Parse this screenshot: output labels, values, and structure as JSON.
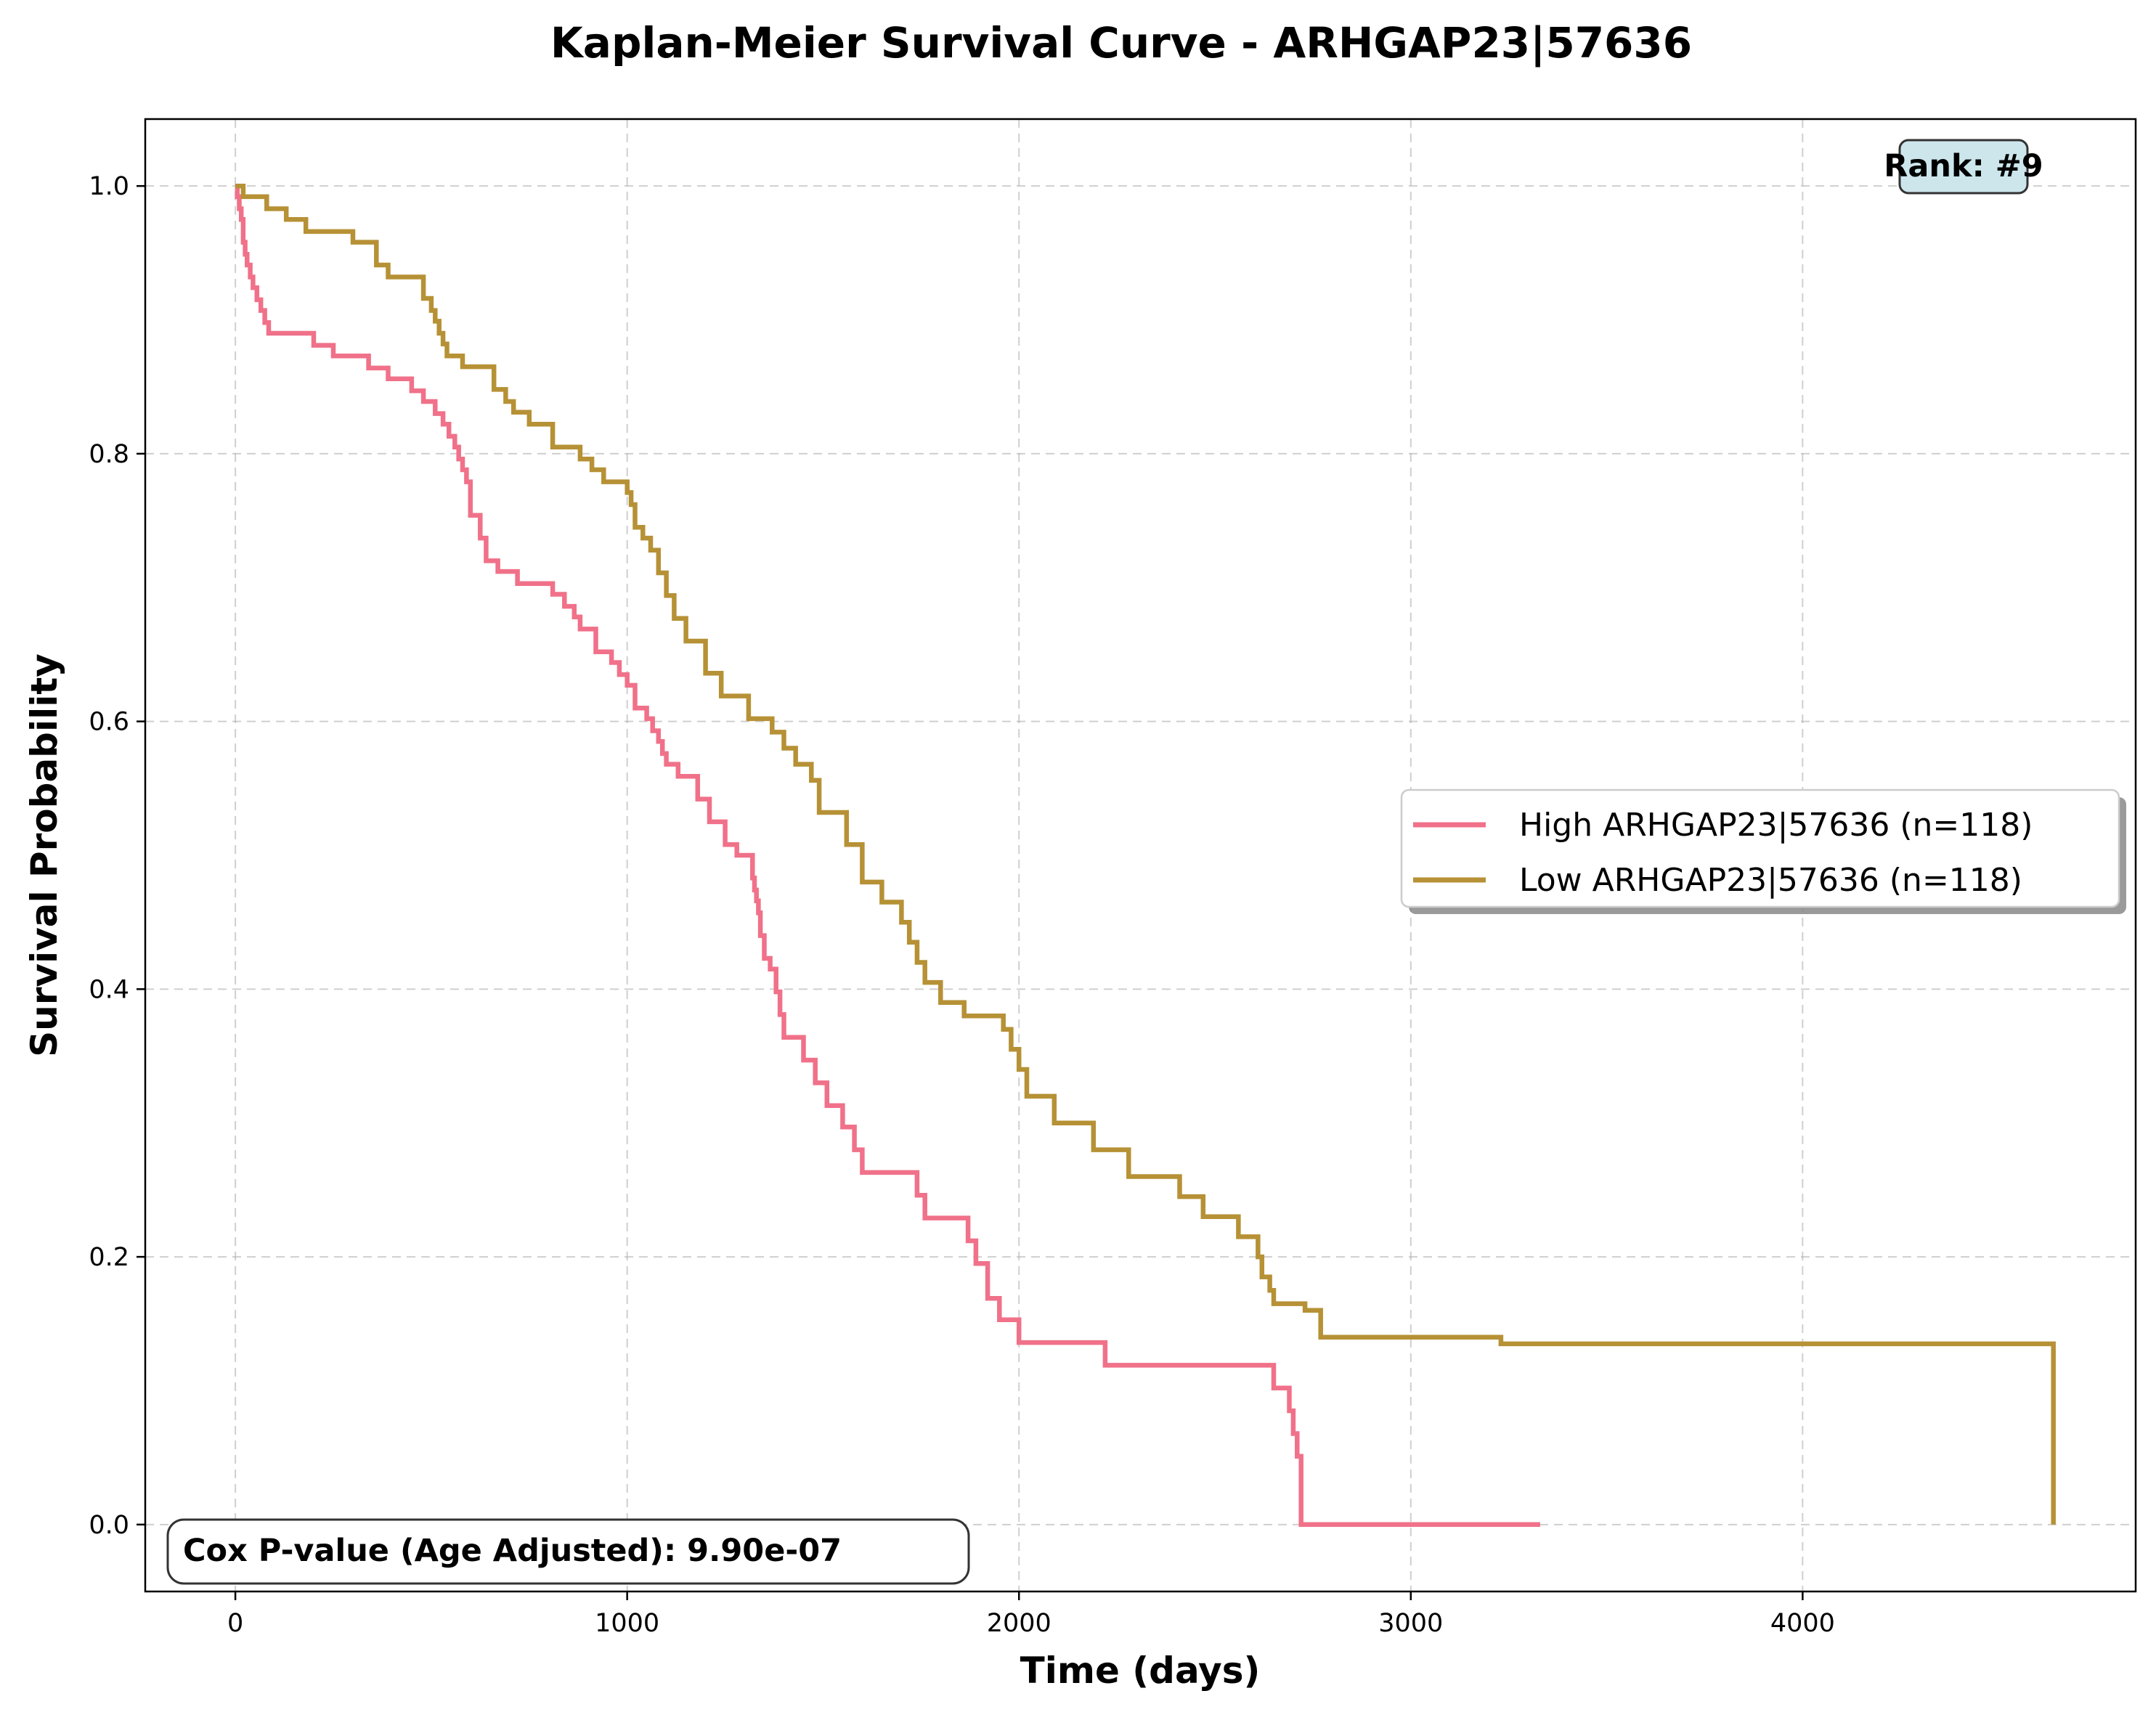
{
  "chart_data": {
    "type": "line",
    "step": "post",
    "title": "Kaplan-Meier Survival Curve - ARHGAP23|57636",
    "xlabel": "Time (days)",
    "ylabel": "Survival Probability",
    "xlim": [
      -230,
      4850
    ],
    "ylim": [
      -0.05,
      1.05
    ],
    "xticks": [
      0,
      1000,
      2000,
      3000,
      4000
    ],
    "yticks": [
      0.0,
      0.2,
      0.4,
      0.6,
      0.8,
      1.0
    ],
    "xtick_labels": [
      "0",
      "1000",
      "2000",
      "3000",
      "4000"
    ],
    "ytick_labels": [
      "0.0",
      "0.2",
      "0.4",
      "0.6",
      "0.8",
      "1.0"
    ],
    "grid": true,
    "legend_position": "center-right",
    "series": [
      {
        "name": "High ARHGAP23|57636 (n=118)",
        "color": "#f07189",
        "x": [
          0,
          5,
          10,
          15,
          20,
          25,
          30,
          38,
          45,
          55,
          65,
          75,
          85,
          100,
          200,
          250,
          340,
          390,
          450,
          480,
          510,
          530,
          545,
          560,
          570,
          580,
          590,
          600,
          625,
          640,
          670,
          720,
          810,
          840,
          865,
          880,
          920,
          960,
          980,
          1000,
          1020,
          1050,
          1065,
          1080,
          1090,
          1100,
          1130,
          1180,
          1210,
          1250,
          1280,
          1320,
          1325,
          1330,
          1335,
          1340,
          1350,
          1365,
          1380,
          1390,
          1400,
          1450,
          1480,
          1510,
          1550,
          1580,
          1600,
          1740,
          1760,
          1870,
          1890,
          1920,
          1950,
          2000,
          2220,
          2650,
          2690,
          2700,
          2710,
          2720,
          3330
        ],
        "y": [
          1.0,
          0.992,
          0.983,
          0.975,
          0.958,
          0.949,
          0.941,
          0.932,
          0.924,
          0.915,
          0.907,
          0.898,
          0.89,
          0.89,
          0.881,
          0.873,
          0.864,
          0.856,
          0.847,
          0.839,
          0.83,
          0.822,
          0.813,
          0.805,
          0.796,
          0.788,
          0.779,
          0.754,
          0.737,
          0.72,
          0.712,
          0.703,
          0.695,
          0.686,
          0.678,
          0.669,
          0.652,
          0.644,
          0.635,
          0.627,
          0.61,
          0.602,
          0.593,
          0.585,
          0.576,
          0.568,
          0.559,
          0.542,
          0.525,
          0.508,
          0.5,
          0.483,
          0.474,
          0.466,
          0.457,
          0.44,
          0.423,
          0.415,
          0.398,
          0.381,
          0.364,
          0.347,
          0.33,
          0.313,
          0.297,
          0.28,
          0.263,
          0.246,
          0.229,
          0.212,
          0.195,
          0.169,
          0.153,
          0.136,
          0.119,
          0.102,
          0.085,
          0.068,
          0.051,
          0.0,
          0.0
        ]
      },
      {
        "name": "Low ARHGAP23|57636 (n=118)",
        "color": "#b69135",
        "x": [
          0,
          20,
          80,
          130,
          180,
          300,
          360,
          390,
          480,
          500,
          510,
          520,
          530,
          540,
          580,
          660,
          690,
          710,
          750,
          810,
          880,
          910,
          940,
          1000,
          1010,
          1020,
          1040,
          1060,
          1080,
          1100,
          1120,
          1150,
          1200,
          1240,
          1310,
          1370,
          1400,
          1430,
          1470,
          1490,
          1560,
          1600,
          1650,
          1700,
          1720,
          1740,
          1760,
          1800,
          1860,
          1960,
          1980,
          2000,
          2020,
          2090,
          2190,
          2280,
          2410,
          2470,
          2560,
          2610,
          2620,
          2640,
          2650,
          2730,
          2770,
          3230,
          4640
        ],
        "y": [
          1.0,
          0.992,
          0.983,
          0.975,
          0.966,
          0.958,
          0.941,
          0.932,
          0.916,
          0.907,
          0.899,
          0.89,
          0.882,
          0.873,
          0.865,
          0.848,
          0.839,
          0.831,
          0.822,
          0.805,
          0.796,
          0.788,
          0.779,
          0.771,
          0.762,
          0.745,
          0.737,
          0.728,
          0.711,
          0.694,
          0.677,
          0.66,
          0.636,
          0.619,
          0.602,
          0.592,
          0.58,
          0.568,
          0.556,
          0.532,
          0.508,
          0.48,
          0.465,
          0.45,
          0.435,
          0.42,
          0.405,
          0.39,
          0.38,
          0.37,
          0.355,
          0.34,
          0.32,
          0.3,
          0.28,
          0.26,
          0.245,
          0.23,
          0.215,
          0.2,
          0.185,
          0.175,
          0.165,
          0.16,
          0.14,
          0.135,
          0.0
        ]
      }
    ]
  },
  "annotations": {
    "rank_badge": "Rank: #9",
    "cox_pvalue": "Cox P-value (Age Adjusted): 9.90e-07",
    "rank_badge_bg": "#cce6ec",
    "pvalue_bg": "#ffffff"
  }
}
